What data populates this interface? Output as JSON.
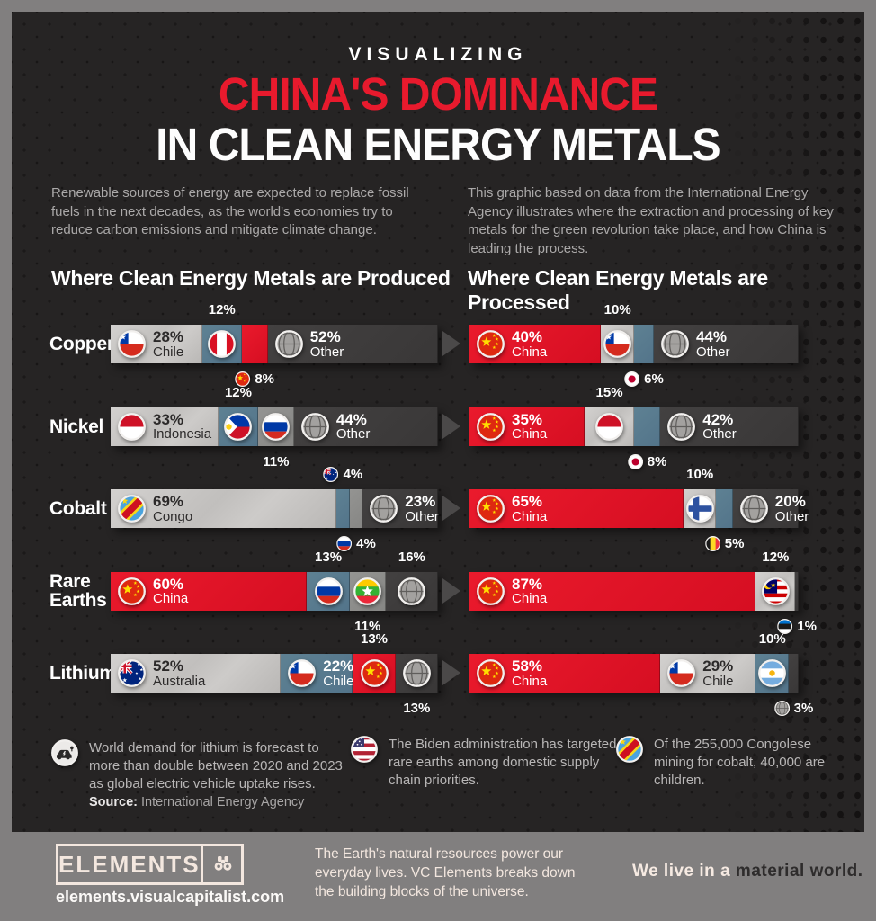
{
  "header": {
    "kicker": "VISUALIZING",
    "title_line1": "CHINA'S DOMINANCE",
    "title_line2": "IN CLEAN ENERGY METALS"
  },
  "intro": {
    "left": "Renewable sources of energy are expected to replace fossil fuels in the next decades, as the world's economies try to reduce carbon emissions and mitigate climate change.",
    "right": "This graphic based on data from the International Energy Agency illustrates where the extraction and processing of key metals for the green revolution take place, and how China is leading the process."
  },
  "columns": {
    "produced_heading": "Where Clean Energy Metals are Produced",
    "processed_heading": "Where Clean Energy Metals are Processed"
  },
  "chart_data": {
    "type": "bar",
    "subtype": "paired-stacked-horizontal",
    "unit": "%",
    "categories": [
      "Copper",
      "Nickel",
      "Cobalt",
      "Rare Earths",
      "Lithium"
    ],
    "colors": {
      "red": "#e01527",
      "light": "#c8c6c4",
      "blue": "#5b7d8f",
      "gray": "#8e8e8c",
      "dark": "#3e3c3c",
      "background": "#262424",
      "frame": "#817f7f",
      "accent_title": "#e81a2d"
    },
    "rows": [
      {
        "metal": "Copper",
        "produced": [
          {
            "country": "Chile",
            "flag": "chile",
            "value": 28,
            "tone": "light",
            "label": "inside",
            "show_name": true
          },
          {
            "country": "Peru",
            "flag": "peru",
            "value": 12,
            "tone": "blue",
            "label": "above",
            "flag_pos": "inside"
          },
          {
            "country": "China",
            "flag": "china",
            "value": 8,
            "tone": "red",
            "label": "below",
            "flag_pos": "label"
          },
          {
            "country": "Other",
            "flag": "globe",
            "value": 52,
            "tone": "dark",
            "label": "inside",
            "show_name": true
          }
        ],
        "processed": [
          {
            "country": "China",
            "flag": "china",
            "value": 40,
            "tone": "red",
            "label": "inside",
            "show_name": true
          },
          {
            "country": "Chile",
            "flag": "chile",
            "value": 10,
            "tone": "light",
            "label": "above",
            "flag_pos": "inside"
          },
          {
            "country": "Japan",
            "flag": "japan",
            "value": 6,
            "tone": "blue",
            "label": "below",
            "flag_pos": "label"
          },
          {
            "country": "Other",
            "flag": "globe",
            "value": 44,
            "tone": "dark",
            "label": "inside",
            "show_name": true
          }
        ]
      },
      {
        "metal": "Nickel",
        "produced": [
          {
            "country": "Indonesia",
            "flag": "indonesia",
            "value": 33,
            "tone": "light",
            "label": "inside",
            "show_name": true
          },
          {
            "country": "Philippines",
            "flag": "philippines",
            "value": 12,
            "tone": "blue",
            "label": "above",
            "flag_pos": "inside"
          },
          {
            "country": "Russia",
            "flag": "russia",
            "value": 11,
            "tone": "gray",
            "label": "below",
            "flag_pos": "inside"
          },
          {
            "country": "Other",
            "flag": "globe",
            "value": 44,
            "tone": "dark",
            "label": "inside",
            "show_name": true
          }
        ],
        "processed": [
          {
            "country": "China",
            "flag": "china",
            "value": 35,
            "tone": "red",
            "label": "inside",
            "show_name": true
          },
          {
            "country": "Indonesia",
            "flag": "indonesia",
            "value": 15,
            "tone": "light",
            "label": "above",
            "flag_pos": "inside"
          },
          {
            "country": "Japan",
            "flag": "japan",
            "value": 8,
            "tone": "blue",
            "label": "below",
            "flag_pos": "label"
          },
          {
            "country": "Other",
            "flag": "globe",
            "value": 42,
            "tone": "dark",
            "label": "inside",
            "show_name": true
          }
        ]
      },
      {
        "metal": "Cobalt",
        "produced": [
          {
            "country": "Congo",
            "flag": "congo",
            "value": 69,
            "tone": "light",
            "label": "inside",
            "show_name": true
          },
          {
            "country": "Australia",
            "flag": "australia",
            "value": 4,
            "tone": "blue",
            "label": "above",
            "flag_pos": "label"
          },
          {
            "country": "Russia",
            "flag": "russia",
            "value": 4,
            "tone": "gray",
            "label": "below",
            "flag_pos": "label"
          },
          {
            "country": "Other",
            "flag": "globe",
            "value": 23,
            "tone": "dark",
            "label": "inside",
            "show_name": true
          }
        ],
        "processed": [
          {
            "country": "China",
            "flag": "china",
            "value": 65,
            "tone": "red",
            "label": "inside",
            "show_name": true
          },
          {
            "country": "Finland",
            "flag": "finland",
            "value": 10,
            "tone": "light",
            "label": "above",
            "flag_pos": "inside"
          },
          {
            "country": "Belgium",
            "flag": "belgium",
            "value": 5,
            "tone": "blue",
            "label": "below",
            "flag_pos": "label"
          },
          {
            "country": "Other",
            "flag": "globe",
            "value": 20,
            "tone": "dark",
            "label": "inside",
            "show_name": true
          }
        ]
      },
      {
        "metal": "Rare Earths",
        "produced": [
          {
            "country": "China",
            "flag": "china",
            "value": 60,
            "tone": "red",
            "label": "inside",
            "show_name": true
          },
          {
            "country": "Russia",
            "flag": "russia",
            "value": 13,
            "tone": "blue",
            "label": "above",
            "flag_pos": "inside"
          },
          {
            "country": "Myanmar",
            "flag": "myanmar",
            "value": 11,
            "tone": "gray",
            "label": "below",
            "flag_pos": "inside"
          },
          {
            "country": "Other",
            "flag": "globe",
            "value": 16,
            "tone": "dark",
            "label": "above",
            "flag_pos": "inside"
          }
        ],
        "processed": [
          {
            "country": "China",
            "flag": "china",
            "value": 87,
            "tone": "red",
            "label": "inside",
            "show_name": true
          },
          {
            "country": "Malaysia",
            "flag": "malaysia",
            "value": 12,
            "tone": "light",
            "label": "above",
            "flag_pos": "inside"
          },
          {
            "country": "Estonia",
            "flag": "estonia",
            "value": 1,
            "tone": "dark",
            "label": "below",
            "flag_pos": "label"
          }
        ]
      },
      {
        "metal": "Lithium",
        "produced": [
          {
            "country": "Australia",
            "flag": "australia",
            "value": 52,
            "tone": "light",
            "label": "inside",
            "show_name": true
          },
          {
            "country": "Chile",
            "flag": "chile",
            "value": 22,
            "tone": "blue",
            "label": "inside",
            "show_name": true
          },
          {
            "country": "China",
            "flag": "china",
            "value": 13,
            "tone": "red",
            "label": "above",
            "flag_pos": "inside"
          },
          {
            "country": "Other",
            "flag": "globe",
            "value": 13,
            "tone": "dark",
            "label": "below",
            "flag_pos": "inside"
          }
        ],
        "processed": [
          {
            "country": "China",
            "flag": "china",
            "value": 58,
            "tone": "red",
            "label": "inside",
            "show_name": true
          },
          {
            "country": "Chile",
            "flag": "chile",
            "value": 29,
            "tone": "light",
            "label": "inside",
            "show_name": true
          },
          {
            "country": "Argentina",
            "flag": "argentina",
            "value": 10,
            "tone": "blue",
            "label": "above",
            "flag_pos": "inside"
          },
          {
            "country": "Other",
            "flag": "globe",
            "value": 3,
            "tone": "dark",
            "label": "below",
            "flag_pos": "label"
          }
        ]
      }
    ]
  },
  "notes": [
    {
      "icon": "ev-car-icon",
      "text": "World demand for lithium is forecast to more than double between 2020 and 2023 as global electric vehicle uptake rises.",
      "source_label": "Source:",
      "source": "International Energy Agency"
    },
    {
      "icon": "usa-flag-icon",
      "text": "The Biden administration has targeted rare earths among domestic supply chain priorities."
    },
    {
      "icon": "drc-flag-icon",
      "text": "Of the 255,000 Congolese mining for cobalt, 40,000 are children."
    }
  ],
  "footer": {
    "brand": "ELEMENTS",
    "brand_icon": "binoculars-icon",
    "url": "elements.visualcapitalist.com",
    "tagline": "The Earth's natural resources power our everyday lives. VC Elements breaks down the building blocks of the universe.",
    "slogan_light": "We live in a",
    "slogan_dark": "material world."
  }
}
